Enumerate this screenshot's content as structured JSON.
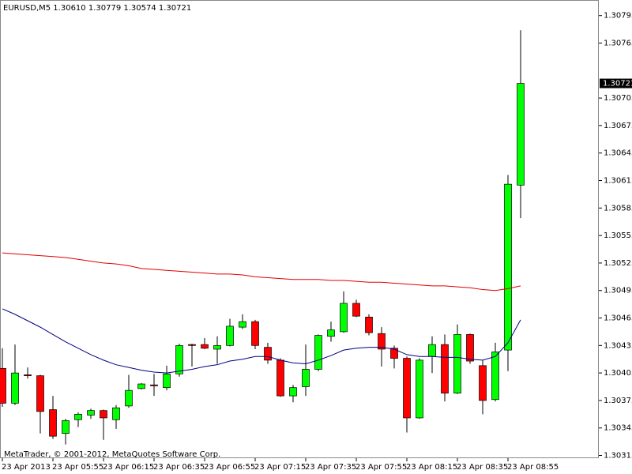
{
  "chart_data": {
    "type": "candlestick",
    "title": "EURUSD,M5  1.30610 1.30779 1.30574 1.30721",
    "credit": "MetaTrader, © 2001-2012, MetaQuotes Software Corp.",
    "categories": [
      "23 Apr 2013",
      null,
      null,
      null,
      "23 Apr 05:55",
      null,
      null,
      null,
      "23 Apr 06:15",
      null,
      null,
      null,
      "23 Apr 06:35",
      null,
      null,
      null,
      "23 Apr 06:55",
      null,
      null,
      null,
      "23 Apr 07:15",
      null,
      null,
      null,
      "23 Apr 07:35",
      null,
      null,
      null,
      "23 Apr 07:55",
      null,
      null,
      null,
      "23 Apr 08:15",
      null,
      null,
      null,
      "23 Apr 08:35",
      null,
      null,
      null,
      "23 Apr 08:55",
      null
    ],
    "open": [
      1.3041,
      1.30372,
      1.30403,
      1.30402,
      1.30365,
      1.30339,
      1.30354,
      1.30359,
      1.30364,
      1.30354,
      1.30369,
      1.30388,
      1.30392,
      1.30389,
      1.30404,
      1.30436,
      1.30436,
      1.30431,
      1.30435,
      1.30455,
      1.30461,
      1.30433,
      1.30419,
      1.3038,
      1.3039,
      1.30409,
      1.30445,
      1.3045,
      1.30481,
      1.30466,
      1.30448,
      1.30432,
      1.30421,
      1.30356,
      1.30423,
      1.30436,
      1.30383,
      1.30447,
      1.30413,
      1.30376,
      1.3043,
      1.3061
    ],
    "high": [
      1.30432,
      1.30436,
      1.30411,
      1.30403,
      1.3038,
      1.30355,
      1.30362,
      1.30366,
      1.30365,
      1.3037,
      1.30403,
      1.30394,
      1.30404,
      1.30413,
      1.30437,
      1.30437,
      1.30443,
      1.30445,
      1.30464,
      1.30469,
      1.30463,
      1.30438,
      1.30421,
      1.30392,
      1.30436,
      1.30447,
      1.30461,
      1.30494,
      1.30485,
      1.30469,
      1.30455,
      1.30435,
      1.30423,
      1.30421,
      1.30445,
      1.30447,
      1.30458,
      1.30448,
      1.30419,
      1.30438,
      1.30621,
      1.30779
    ],
    "low": [
      1.30368,
      1.3037,
      1.30399,
      1.30339,
      1.30333,
      1.30327,
      1.30346,
      1.30355,
      1.30332,
      1.30344,
      1.30367,
      1.30387,
      1.3038,
      1.30386,
      1.30401,
      1.30412,
      1.30431,
      1.30415,
      1.30434,
      1.30453,
      1.30431,
      1.30415,
      1.30379,
      1.30373,
      1.3038,
      1.30407,
      1.30439,
      1.30449,
      1.30466,
      1.30446,
      1.30412,
      1.3041,
      1.3034,
      1.30355,
      1.30405,
      1.30374,
      1.30382,
      1.30415,
      1.3036,
      1.30374,
      1.30407,
      1.30574
    ],
    "close": [
      1.30372,
      1.30405,
      1.30402,
      1.30363,
      1.30336,
      1.30353,
      1.3036,
      1.30364,
      1.30356,
      1.30367,
      1.30386,
      1.30393,
      1.30391,
      1.30404,
      1.30435,
      1.30435,
      1.30432,
      1.30435,
      1.30456,
      1.30461,
      1.30435,
      1.30419,
      1.3038,
      1.30389,
      1.30409,
      1.30446,
      1.30452,
      1.30481,
      1.30467,
      1.30449,
      1.30431,
      1.30421,
      1.30356,
      1.30419,
      1.30436,
      1.30383,
      1.30447,
      1.30418,
      1.30375,
      1.30428,
      1.30611,
      1.30721
    ],
    "up_color": "#00ff00",
    "down_color": "#ff0000",
    "lines": [
      {
        "color": "#e00000",
        "values": [
          1.30536,
          1.30535,
          1.30534,
          1.30533,
          1.30532,
          1.30531,
          1.30529,
          1.30527,
          1.30525,
          1.30524,
          1.30522,
          1.30519,
          1.30518,
          1.30517,
          1.30516,
          1.30515,
          1.30514,
          1.30513,
          1.30513,
          1.30512,
          1.3051,
          1.30509,
          1.30508,
          1.30507,
          1.30507,
          1.30507,
          1.30506,
          1.30506,
          1.30505,
          1.30504,
          1.30504,
          1.30503,
          1.30502,
          1.30501,
          1.305,
          1.305,
          1.30499,
          1.30498,
          1.30496,
          1.30495,
          1.30497,
          1.305
        ]
      },
      {
        "color": "#000080",
        "values": [
          1.30475,
          1.30469,
          1.30462,
          1.30455,
          1.30447,
          1.30439,
          1.30432,
          1.30425,
          1.30419,
          1.30414,
          1.30411,
          1.30408,
          1.30406,
          1.30405,
          1.30407,
          1.30409,
          1.30412,
          1.30414,
          1.30418,
          1.3042,
          1.30423,
          1.30423,
          1.30419,
          1.30416,
          1.30415,
          1.30419,
          1.30424,
          1.3043,
          1.30432,
          1.30433,
          1.30433,
          1.30431,
          1.30425,
          1.30423,
          1.30423,
          1.30422,
          1.30422,
          1.3042,
          1.30419,
          1.30423,
          1.30438,
          1.30463
        ]
      }
    ],
    "ylim": [
      1.30312,
      1.30812
    ],
    "yticks": [
      1.30315,
      1.30345,
      1.30375,
      1.30405,
      1.30435,
      1.30465,
      1.30495,
      1.30525,
      1.30555,
      1.30585,
      1.30615,
      1.30645,
      1.30675,
      1.30705,
      1.30765,
      1.30795
    ]
  }
}
